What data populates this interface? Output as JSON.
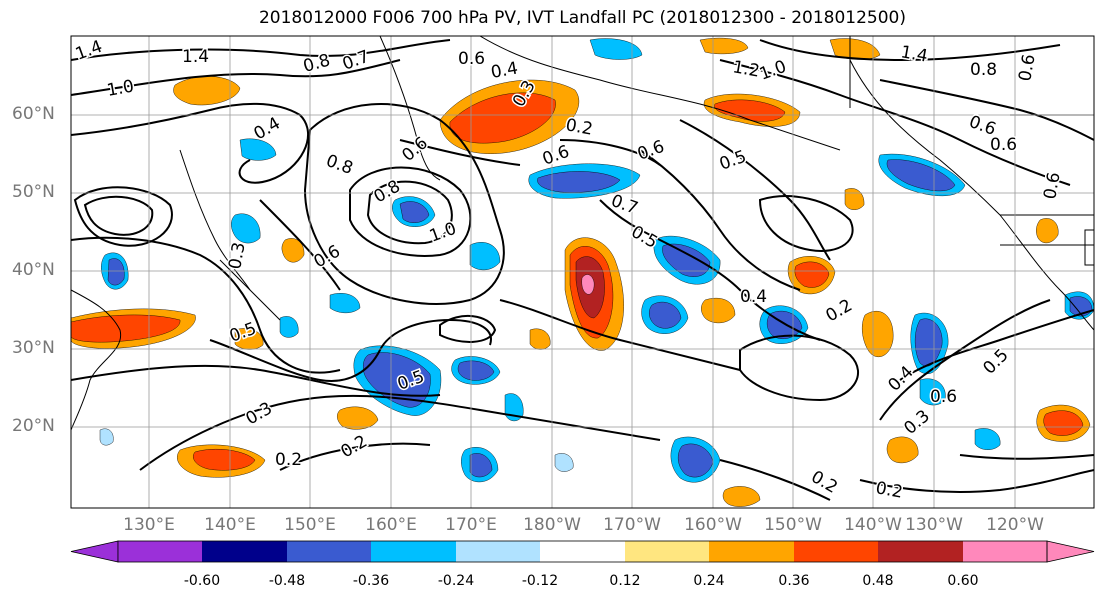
{
  "title": "2018012000 F006 700 hPa PV, IVT Landfall PC (2018012300 - 2018012500)",
  "lat_labels": [
    "60°N",
    "50°N",
    "40°N",
    "30°N",
    "20°N"
  ],
  "lon_labels": [
    "130°E",
    "140°E",
    "150°E",
    "160°E",
    "170°E",
    "180°W",
    "170°W",
    "160°W",
    "150°W",
    "140°W",
    "130°W",
    "120°W"
  ],
  "colorbar": {
    "ticks": [
      "-0.60",
      "-0.48",
      "-0.36",
      "-0.24",
      "-0.12",
      "0.12",
      "0.24",
      "0.36",
      "0.48",
      "0.60"
    ],
    "colors": [
      "#9b30d9",
      "#00008b",
      "#3a5bd0",
      "#00bfff",
      "#b0e2ff",
      "#ffffff",
      "#ffe680",
      "#ffa500",
      "#ff4500",
      "#b22222",
      "#ff88bb"
    ]
  },
  "contour_labels": [
    "1.4",
    "1.4",
    "1.0",
    "0.8",
    "0.7",
    "0.6",
    "0.4",
    "0.3",
    "0.2",
    "0.4",
    "0.8",
    "0.8",
    "0.6",
    "1.0",
    "0.6",
    "0.5",
    "0.5",
    "0.6",
    "0.7",
    "0.6",
    "1.4",
    "1.2",
    "1.0",
    "0.8",
    "0.6",
    "0.6",
    "0.6",
    "0.5",
    "0.4",
    "0.2",
    "0.4",
    "0.6",
    "0.3",
    "0.2",
    "0.3",
    "0.2",
    "0.3",
    "0.5",
    "0.6",
    "0.2",
    "0.2",
    "0.5"
  ],
  "colors": {
    "contour": "#000000",
    "coast": "#000000",
    "grid": "#999999",
    "axis_labels": "#777777"
  }
}
